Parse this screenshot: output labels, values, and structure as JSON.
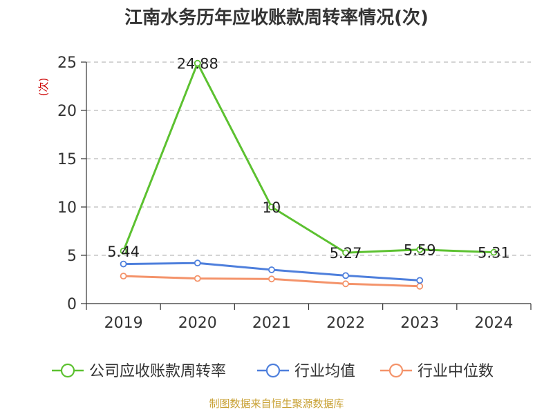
{
  "chart_data": {
    "type": "line",
    "title": "江南水务历年应收账款周转率情况(次)",
    "ylabel": "(次)",
    "xlabel": "",
    "categories": [
      "2019",
      "2020",
      "2021",
      "2022",
      "2023",
      "2024"
    ],
    "ylim": [
      0,
      25
    ],
    "yticks": [
      0,
      5,
      10,
      15,
      20,
      25
    ],
    "grid": true,
    "legend_position": "bottom",
    "series": [
      {
        "name": "公司应收账款周转率",
        "color": "#5cc130",
        "values": [
          5.44,
          24.88,
          10,
          5.27,
          5.59,
          5.31
        ],
        "labels": [
          "5.44",
          "24.88",
          "10",
          "5.27",
          "5.59",
          "5.31"
        ]
      },
      {
        "name": "行业均值",
        "color": "#4e7fdc",
        "values": [
          4.1,
          4.2,
          3.5,
          2.9,
          2.4,
          null
        ]
      },
      {
        "name": "行业中位数",
        "color": "#f4936a",
        "values": [
          2.85,
          2.6,
          2.55,
          2.05,
          1.8,
          null
        ]
      }
    ]
  },
  "footer": {
    "source": "制图数据来自恒生聚源数据库"
  }
}
